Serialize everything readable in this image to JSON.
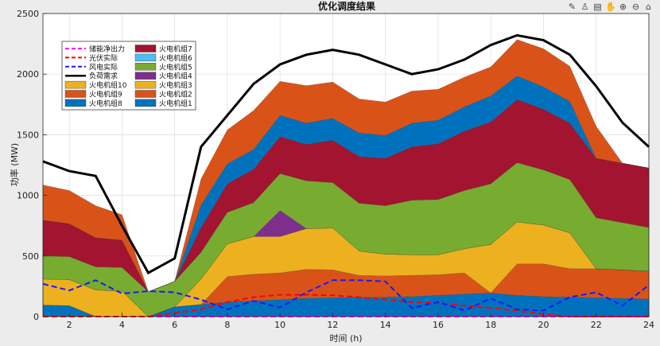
{
  "toolbar": {
    "icons": [
      "brush-icon",
      "datatip-icon",
      "grid-icon",
      "pan-icon",
      "zoom-in-icon",
      "zoom-out-icon",
      "home-icon"
    ],
    "glyphs": [
      "✎",
      "♙",
      "▤",
      "✋",
      "⊕",
      "⊖",
      "⌂"
    ]
  },
  "chart_data": {
    "type": "area",
    "title": "优化调度结果",
    "xlabel": "时间 (h)",
    "ylabel": "功率 (MW)",
    "xlim": [
      1,
      24
    ],
    "ylim": [
      0,
      2500
    ],
    "xticks": [
      2,
      4,
      6,
      8,
      10,
      12,
      14,
      16,
      18,
      20,
      22,
      24
    ],
    "yticks": [
      0,
      500,
      1000,
      1500,
      2000,
      2500
    ],
    "grid": true,
    "legend_position": "top-left",
    "x": [
      1,
      2,
      3,
      4,
      5,
      6,
      7,
      8,
      9,
      10,
      11,
      12,
      13,
      14,
      15,
      16,
      17,
      18,
      19,
      20,
      21,
      22,
      23,
      24
    ],
    "stacked_areas": [
      {
        "name": "火电机组1",
        "color": "#0072BD",
        "values": [
          95,
          90,
          0,
          0,
          0,
          80,
          100,
          120,
          130,
          140,
          150,
          155,
          160,
          160,
          165,
          175,
          185,
          195,
          175,
          165,
          160,
          155,
          150,
          145
        ]
      },
      {
        "name": "火电机组2",
        "color": "#D95319",
        "values": [
          0,
          0,
          0,
          0,
          0,
          0,
          0,
          210,
          220,
          220,
          240,
          230,
          180,
          175,
          175,
          170,
          175,
          0,
          260,
          270,
          235,
          240,
          235,
          230
        ]
      },
      {
        "name": "火电机组3",
        "color": "#EDB120",
        "values": [
          215,
          215,
          220,
          210,
          0,
          0,
          210,
          270,
          310,
          300,
          335,
          345,
          200,
          180,
          170,
          165,
          200,
          400,
          345,
          320,
          295,
          0,
          0,
          0
        ]
      },
      {
        "name": "火电机组4",
        "color": "#7E2F8E",
        "values": [
          0,
          0,
          0,
          0,
          0,
          0,
          0,
          0,
          0,
          215,
          0,
          0,
          0,
          0,
          0,
          0,
          0,
          0,
          0,
          0,
          0,
          0,
          0,
          0
        ]
      },
      {
        "name": "火电机组5",
        "color": "#77AC30",
        "values": [
          190,
          190,
          190,
          195,
          205,
          210,
          220,
          260,
          280,
          305,
          395,
          375,
          395,
          400,
          450,
          455,
          480,
          500,
          490,
          455,
          440,
          420,
          390,
          360
        ]
      },
      {
        "name": "火电机组6",
        "color": "#4DBEEE",
        "values": [
          0,
          0,
          0,
          0,
          0,
          0,
          0,
          0,
          0,
          0,
          0,
          0,
          0,
          0,
          0,
          0,
          0,
          0,
          0,
          0,
          0,
          0,
          0,
          0
        ]
      },
      {
        "name": "火电机组7",
        "color": "#A2142F",
        "values": [
          295,
          270,
          240,
          225,
          0,
          0,
          205,
          235,
          275,
          305,
          300,
          350,
          385,
          390,
          440,
          460,
          490,
          510,
          520,
          500,
          465,
          490,
          490,
          490
        ]
      },
      {
        "name": "火电机组8",
        "color": "#0072BD",
        "values": [
          0,
          0,
          0,
          0,
          0,
          0,
          185,
          165,
          165,
          175,
          175,
          180,
          195,
          190,
          195,
          195,
          200,
          215,
          195,
          185,
          180,
          0,
          0,
          0
        ]
      },
      {
        "name": "火电机组9",
        "color": "#D95319",
        "values": [
          290,
          275,
          265,
          210,
          0,
          0,
          215,
          280,
          320,
          280,
          310,
          300,
          280,
          275,
          265,
          255,
          245,
          240,
          300,
          315,
          290,
          265,
          0,
          0
        ]
      },
      {
        "name": "火电机组10",
        "color": "#EDB120",
        "values": [
          0,
          0,
          0,
          0,
          0,
          0,
          0,
          0,
          0,
          0,
          0,
          0,
          0,
          0,
          0,
          0,
          0,
          0,
          0,
          0,
          0,
          0,
          0,
          0
        ]
      }
    ],
    "lines": [
      {
        "name": "负荷需求",
        "color": "#000000",
        "style": "solid",
        "values": [
          1280,
          1200,
          1160,
          750,
          360,
          480,
          1400,
          1660,
          1920,
          2080,
          2160,
          2200,
          2160,
          2080,
          2000,
          2040,
          2120,
          2240,
          2320,
          2280,
          2160,
          1900,
          1600,
          1400
        ]
      },
      {
        "name": "风电实际",
        "color": "#1a1aff",
        "style": "dashed",
        "values": [
          270,
          215,
          300,
          190,
          210,
          200,
          140,
          60,
          130,
          75,
          200,
          300,
          300,
          290,
          70,
          120,
          50,
          150,
          60,
          50,
          160,
          200,
          90,
          260
        ]
      },
      {
        "name": "光伏实际",
        "color": "#ff0000",
        "style": "dashed",
        "values": [
          0,
          0,
          0,
          0,
          0,
          30,
          60,
          120,
          160,
          180,
          180,
          175,
          160,
          140,
          120,
          110,
          90,
          70,
          50,
          20,
          0,
          0,
          0,
          0
        ]
      },
      {
        "name": "储能净出力",
        "color": "#ff00ff",
        "style": "dashed",
        "values": [
          0,
          0,
          0,
          0,
          0,
          0,
          0,
          0,
          0,
          0,
          0,
          0,
          0,
          0,
          0,
          0,
          0,
          0,
          0,
          0,
          0,
          0,
          0,
          0
        ]
      }
    ],
    "legend": [
      {
        "name": "储能净出力",
        "kind": "line",
        "color": "#ff00ff",
        "style": "dashed"
      },
      {
        "name": "光伏实际",
        "kind": "line",
        "color": "#ff0000",
        "style": "dashed"
      },
      {
        "name": "风电实际",
        "kind": "line",
        "color": "#1a1aff",
        "style": "dashed"
      },
      {
        "name": "负荷需求",
        "kind": "line",
        "color": "#000000",
        "style": "solid"
      },
      {
        "name": "火电机组10",
        "kind": "patch",
        "color": "#EDB120"
      },
      {
        "name": "火电机组9",
        "kind": "patch",
        "color": "#D95319"
      },
      {
        "name": "火电机组8",
        "kind": "patch",
        "color": "#0072BD"
      },
      {
        "name": "火电机组7",
        "kind": "patch",
        "color": "#A2142F"
      },
      {
        "name": "火电机组6",
        "kind": "patch",
        "color": "#4DBEEE"
      },
      {
        "name": "火电机组5",
        "kind": "patch",
        "color": "#77AC30"
      },
      {
        "name": "火电机组4",
        "kind": "patch",
        "color": "#7E2F8E"
      },
      {
        "name": "火电机组3",
        "kind": "patch",
        "color": "#EDB120"
      },
      {
        "name": "火电机组2",
        "kind": "patch",
        "color": "#D95319"
      },
      {
        "name": "火电机组1",
        "kind": "patch",
        "color": "#0072BD"
      }
    ]
  }
}
